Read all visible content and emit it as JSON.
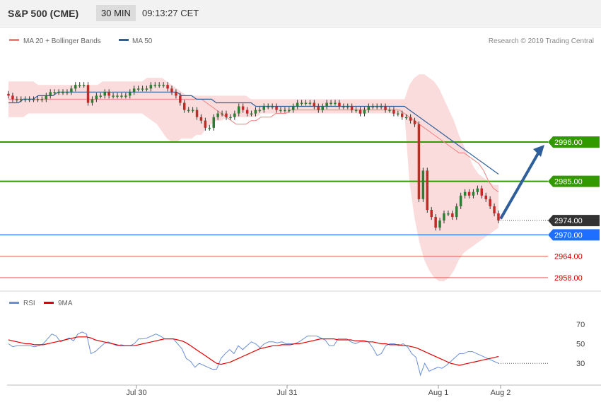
{
  "header": {
    "instrument": "S&P 500 (CME)",
    "timeframe": "30 MIN",
    "time": "09:13:27 CET"
  },
  "legend": {
    "ma20_label": "MA 20 + Bollinger Bands",
    "ma50_label": "MA 50",
    "rsi_label": "RSI",
    "rsi_ma_label": "9MA"
  },
  "credit": "Research © 2019 Trading Central",
  "colors": {
    "support_resistance": "#339900",
    "pivot_blue": "#1e6fff",
    "current_price": "#333333",
    "thin_red": "#e04040",
    "ma20": "#f08080",
    "ma50": "#2e5f9a",
    "band_fill": "#fbdcdc",
    "candle_up": "#2e7d32",
    "candle_down": "#c62828",
    "rsi_line": "#6b8fd6",
    "rsi_ma": "#e00000",
    "arrow": "#2e5f9a"
  },
  "chart_data": [
    {
      "type": "candlestick",
      "x_tick_labels": [
        "Jul 30",
        "Jul 31",
        "Aug 1",
        "Aug 2"
      ],
      "price_levels": [
        {
          "value": 2996.0,
          "label": "2996.00",
          "style": "resistance",
          "color": "#339900"
        },
        {
          "value": 2985.0,
          "label": "2985.00",
          "style": "resistance",
          "color": "#339900"
        },
        {
          "value": 2974.0,
          "label": "2974.00",
          "style": "last_price",
          "color": "#333333"
        },
        {
          "value": 2970.0,
          "label": "2970.00",
          "style": "pivot",
          "color": "#1e6fff"
        },
        {
          "value": 2964.0,
          "label": "2964.00",
          "style": "support",
          "color": "#cc0000"
        },
        {
          "value": 2958.0,
          "label": "2958.00",
          "style": "support",
          "color": "#cc0000"
        }
      ],
      "ylim": [
        2957,
        3016
      ],
      "series": [
        {
          "name": "MA 20 + Bollinger Bands",
          "ma": [
            3008,
            3008,
            3008,
            3008,
            3008,
            3008,
            3008,
            3008,
            3008,
            3008,
            3008,
            3008,
            3008,
            3008,
            3008,
            3008,
            3008,
            3008,
            3008,
            3008,
            3008,
            3008,
            3008,
            3008,
            3008,
            3008,
            3008,
            3008,
            3008,
            3008,
            3008,
            3008,
            3008,
            3008,
            3008,
            3008,
            3008,
            3008,
            3008,
            3008,
            3007,
            3006,
            3005,
            3004,
            3003,
            3002,
            3001,
            3001,
            3001,
            3002,
            3002,
            3003,
            3003,
            3003,
            3004,
            3004,
            3004,
            3005,
            3005,
            3005,
            3005,
            3005,
            3005,
            3005,
            3005,
            3005,
            3005,
            3005,
            3005,
            3005,
            3005,
            3005,
            3005,
            3005,
            3005,
            3005,
            3005,
            3005,
            3005,
            3005,
            3004,
            3003,
            3002,
            3001,
            3000,
            2999,
            2998,
            2997,
            2996,
            2995,
            2994,
            2993,
            2993,
            2992,
            2991,
            2990,
            2988,
            2985,
            2983,
            2982
          ],
          "upper": [
            3013,
            3013,
            3013,
            3013,
            3013,
            3013,
            3012,
            3012,
            3012,
            3012,
            3012,
            3012,
            3012,
            3012,
            3012,
            3012,
            3012,
            3012,
            3012,
            3013,
            3013,
            3013,
            3013,
            3013,
            3013,
            3013,
            3013,
            3013,
            3014,
            3014,
            3014,
            3014,
            3013,
            3012,
            3011,
            3010,
            3009,
            3009,
            3009,
            3009,
            3009,
            3009,
            3009,
            3009,
            3009,
            3009,
            3009,
            3009,
            3009,
            3008,
            3008,
            3008,
            3008,
            3008,
            3008,
            3008,
            3008,
            3008,
            3008,
            3008,
            3008,
            3008,
            3008,
            3008,
            3008,
            3008,
            3008,
            3008,
            3008,
            3008,
            3008,
            3008,
            3008,
            3008,
            3008,
            3008,
            3008,
            3008,
            3008,
            3008,
            3008,
            3012,
            3014,
            3015,
            3015,
            3014,
            3013,
            3011,
            3008,
            3005,
            3002,
            2998,
            2995,
            2992,
            2989,
            2987,
            2986,
            2985,
            2984,
            2984
          ],
          "lower": [
            3003,
            3003,
            3003,
            3003,
            3004,
            3004,
            3004,
            3004,
            3004,
            3004,
            3004,
            3004,
            3004,
            3004,
            3004,
            3004,
            3004,
            3004,
            3004,
            3004,
            3004,
            3004,
            3004,
            3004,
            3004,
            3004,
            3004,
            3004,
            3003,
            3002,
            3001,
            2999,
            2997,
            2996,
            2996,
            2997,
            2997,
            2997,
            2998,
            2998,
            3000,
            3001,
            3002,
            3002,
            3003,
            3003,
            3003,
            3003,
            3003,
            3003,
            3003,
            3004,
            3004,
            3004,
            3004,
            3004,
            3004,
            3004,
            3004,
            3004,
            3004,
            3004,
            3004,
            3004,
            3004,
            3004,
            3004,
            3004,
            3004,
            3004,
            3004,
            3004,
            3004,
            3004,
            3004,
            3004,
            3004,
            3004,
            3004,
            3004,
            3004,
            2985,
            2975,
            2968,
            2963,
            2960,
            2958,
            2957,
            2957,
            2958,
            2960,
            2963,
            2965,
            2966,
            2967,
            2968,
            2969,
            2970,
            2971,
            2972
          ]
        },
        {
          "name": "MA 50",
          "ma": [
            3007,
            3007,
            3007,
            3008,
            3008,
            3008,
            3009,
            3009,
            3009,
            3009,
            3010,
            3010,
            3010,
            3010,
            3010,
            3010,
            3010,
            3010,
            3010,
            3010,
            3010,
            3010,
            3010,
            3010,
            3010,
            3010,
            3010,
            3010,
            3010,
            3010,
            3010,
            3010,
            3010,
            3010,
            3010,
            3009,
            3009,
            3009,
            3008,
            3008,
            3008,
            3008,
            3007,
            3007,
            3007,
            3007,
            3007,
            3007,
            3007,
            3007,
            3006,
            3006,
            3006,
            3006,
            3006,
            3006,
            3006,
            3006,
            3006,
            3006,
            3006,
            3006,
            3006,
            3006,
            3006,
            3006,
            3006,
            3006,
            3006,
            3006,
            3006,
            3006,
            3006,
            3006,
            3006,
            3006,
            3006,
            3006,
            3006,
            3006,
            3006,
            3005,
            3004,
            3003,
            3002,
            3001,
            3000,
            2999,
            2998,
            2997,
            2996,
            2995,
            2994,
            2993,
            2992,
            2991,
            2990,
            2989,
            2988,
            2987
          ]
        },
        {
          "name": "Price",
          "close": [
            3009,
            3008,
            3008,
            3008,
            3008,
            3008,
            3008,
            3008,
            3008,
            3009,
            3010,
            3010,
            3010,
            3010,
            3010,
            3011,
            3012,
            3012,
            3012,
            3007,
            3008,
            3009,
            3009,
            3010,
            3009,
            3009,
            3009,
            3009,
            3009,
            3010,
            3011,
            3011,
            3011,
            3011,
            3012,
            3012,
            3012,
            3012,
            3011,
            3010,
            3009,
            3007,
            3005,
            3005,
            3005,
            3003,
            3002,
            3000,
            3000,
            3003,
            3004,
            3004,
            3003,
            3003,
            3004,
            3006,
            3005,
            3004,
            3004,
            3005,
            3005,
            3006,
            3006,
            3006,
            3005,
            3005,
            3005,
            3005,
            3006,
            3007,
            3007,
            3007,
            3007,
            3006,
            3005,
            3006,
            3007,
            3007,
            3007,
            3006,
            3006,
            3006,
            3005,
            3005,
            3004,
            3005,
            3006,
            3006,
            3006,
            3006,
            3005,
            3005,
            3004,
            3004,
            3003,
            3003,
            3002,
            3001,
            2980,
            2988,
            2977,
            2975,
            2972,
            2974,
            2976,
            2976,
            2975,
            2978,
            2981,
            2982,
            2981,
            2982,
            2983,
            2981,
            2980,
            2978,
            2976,
            2974
          ]
        }
      ]
    },
    {
      "type": "line",
      "series": [
        {
          "name": "RSI",
          "values": [
            50,
            47,
            48,
            48,
            48,
            48,
            47,
            48,
            50,
            55,
            60,
            58,
            52,
            54,
            56,
            53,
            60,
            62,
            60,
            40,
            42,
            46,
            50,
            52,
            50,
            48,
            49,
            48,
            48,
            50,
            55,
            55,
            56,
            58,
            60,
            58,
            55,
            55,
            55,
            50,
            45,
            35,
            32,
            26,
            30,
            28,
            26,
            24,
            24,
            35,
            40,
            44,
            40,
            48,
            44,
            48,
            52,
            50,
            46,
            50,
            52,
            52,
            51,
            52,
            50,
            50,
            50,
            52,
            55,
            58,
            58,
            58,
            56,
            54,
            48,
            48,
            55,
            55,
            55,
            52,
            50,
            52,
            52,
            52,
            46,
            38,
            40,
            48,
            50,
            50,
            48,
            50,
            47,
            40,
            36,
            18,
            30,
            22,
            24,
            26,
            25,
            28,
            32,
            36,
            40,
            40,
            42,
            42,
            40,
            38,
            36,
            34,
            32,
            30
          ]
        },
        {
          "name": "9MA",
          "values": [
            54,
            53,
            52,
            51,
            50,
            50,
            49,
            49,
            49,
            50,
            51,
            52,
            53,
            54,
            55,
            56,
            57,
            57,
            57,
            56,
            54,
            53,
            52,
            51,
            50,
            49,
            48,
            48,
            48,
            48,
            49,
            50,
            51,
            52,
            53,
            54,
            55,
            55,
            55,
            54,
            53,
            51,
            48,
            45,
            42,
            39,
            36,
            33,
            30,
            29,
            30,
            31,
            33,
            35,
            37,
            39,
            41,
            43,
            45,
            46,
            47,
            48,
            48,
            49,
            49,
            49,
            50,
            50,
            51,
            52,
            53,
            54,
            55,
            55,
            55,
            55,
            54,
            54,
            54,
            54,
            53,
            53,
            53,
            52,
            52,
            51,
            50,
            50,
            49,
            49,
            49,
            48,
            48,
            47,
            46,
            44,
            42,
            40,
            38,
            36,
            34,
            32,
            30,
            29,
            28,
            29,
            30,
            31,
            32,
            33,
            34,
            35,
            36,
            37
          ]
        }
      ],
      "y_tick_labels": [
        "70",
        "50",
        "30"
      ],
      "ylim": [
        15,
        80
      ],
      "x_tick_labels": [
        "Jul 30",
        "Jul 31",
        "Aug 1",
        "Aug 2"
      ]
    }
  ]
}
